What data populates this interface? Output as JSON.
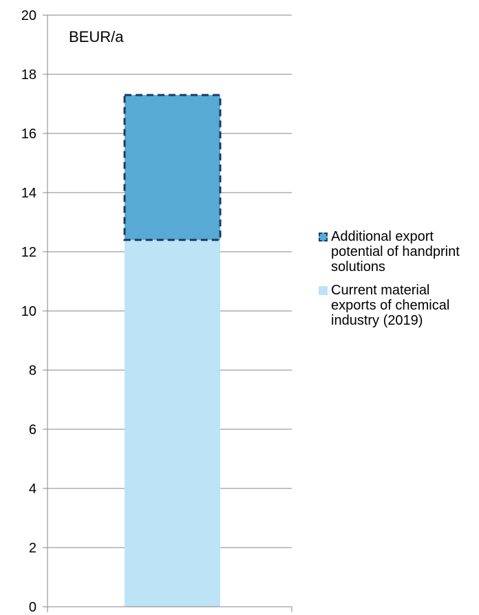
{
  "chart_data": {
    "type": "bar",
    "stacked": true,
    "unit_label": "BEUR/a",
    "ylim": [
      0,
      20
    ],
    "y_ticks": [
      0,
      2,
      4,
      6,
      8,
      10,
      12,
      14,
      16,
      18,
      20
    ],
    "grid": true,
    "legend_position": "right",
    "categories": [
      ""
    ],
    "series": [
      {
        "name": "Current material exports of chemical industry (2019)",
        "values": [
          12.4
        ],
        "color": "#bde3f6",
        "border": "none"
      },
      {
        "name": "Additional export potential of handprint solutions",
        "values": [
          4.9
        ],
        "color": "#56aad3",
        "border": "dashed",
        "border_color": "#1f3864"
      }
    ]
  },
  "legend": {
    "items": [
      {
        "label": "Additional export potential of handprint solutions",
        "color": "#56aad3"
      },
      {
        "label": "Current material exports of chemical industry (2019)",
        "color": "#bde3f6"
      }
    ]
  }
}
